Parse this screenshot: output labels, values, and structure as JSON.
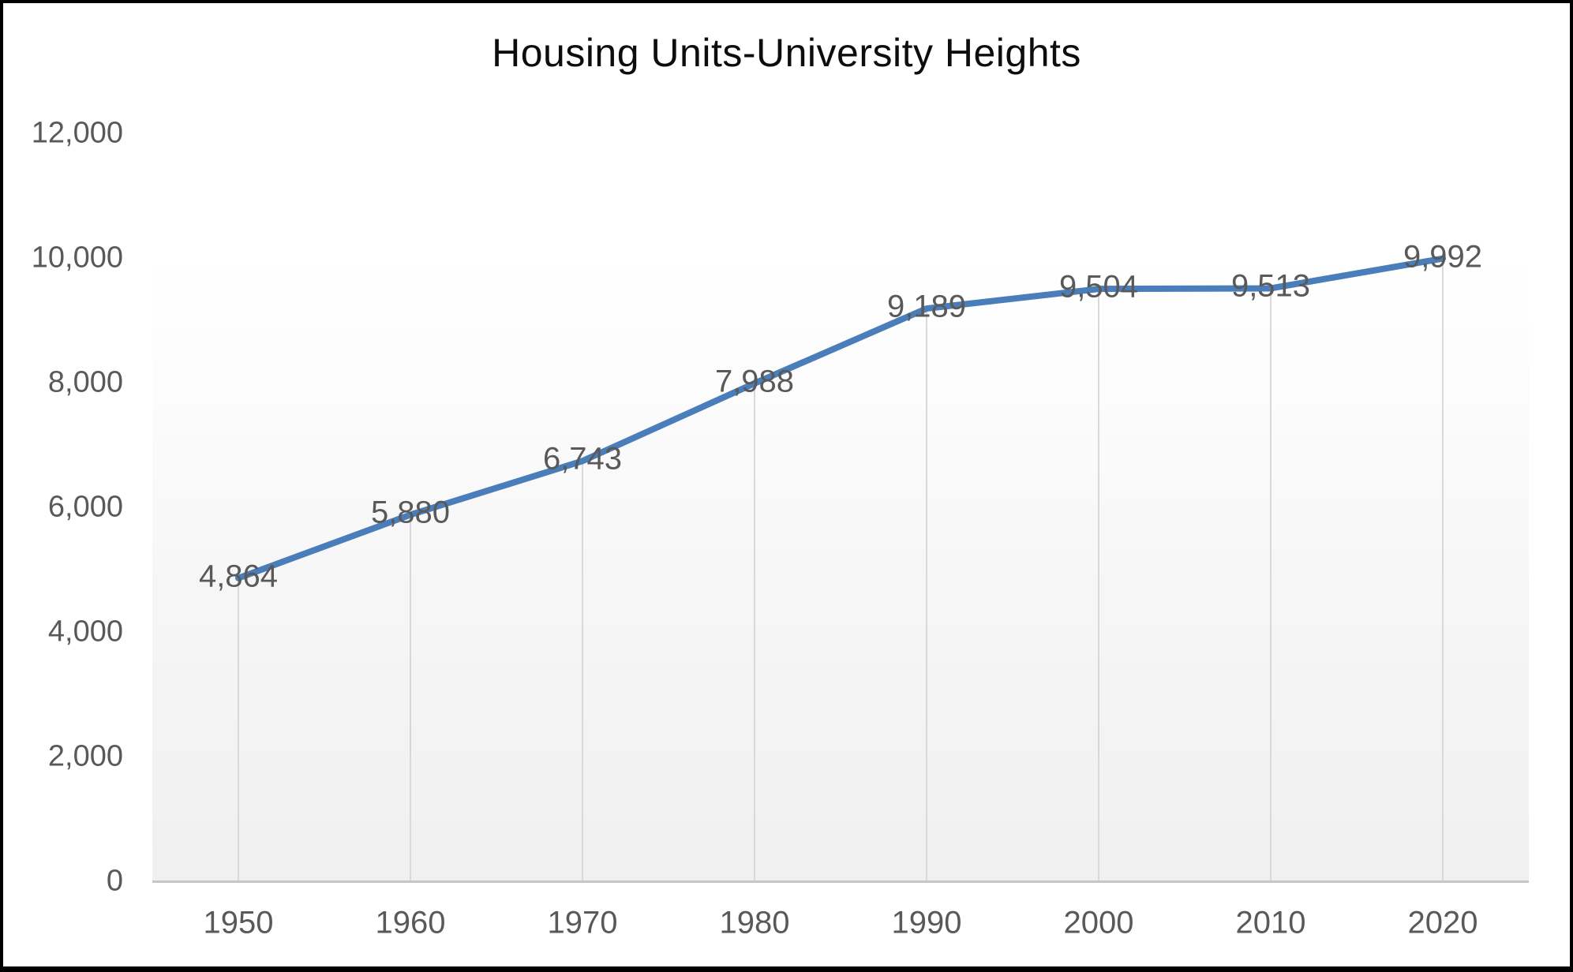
{
  "title": "Housing Units-University Heights",
  "chart_data": {
    "type": "line",
    "title": "Housing Units-University Heights",
    "categories": [
      "1950",
      "1960",
      "1970",
      "1980",
      "1990",
      "2000",
      "2010",
      "2020"
    ],
    "values": [
      4864,
      5880,
      6743,
      7988,
      9189,
      9504,
      9513,
      9992
    ],
    "data_labels": [
      "4,864",
      "5,880",
      "6,743",
      "7,988",
      "9,189",
      "9,504",
      "9,513",
      "9,992"
    ],
    "y_tick_values": [
      0,
      2000,
      4000,
      6000,
      8000,
      10000,
      12000
    ],
    "y_tick_labels": [
      "0",
      "2,000",
      "4,000",
      "6,000",
      "8,000",
      "10,000",
      "12,000"
    ],
    "xlabel": "",
    "ylabel": "",
    "ylim": [
      0,
      12000
    ],
    "grid": "vertical drop lines from each point to x-axis, no horizontal gridlines",
    "legend": "none",
    "series_color": "#4a7ebb",
    "drop_line_color": "#d9d9d9",
    "axis_line_color": "#c6c6c6",
    "tick_text_color": "#595959",
    "title_color": "#0d0d0d"
  }
}
